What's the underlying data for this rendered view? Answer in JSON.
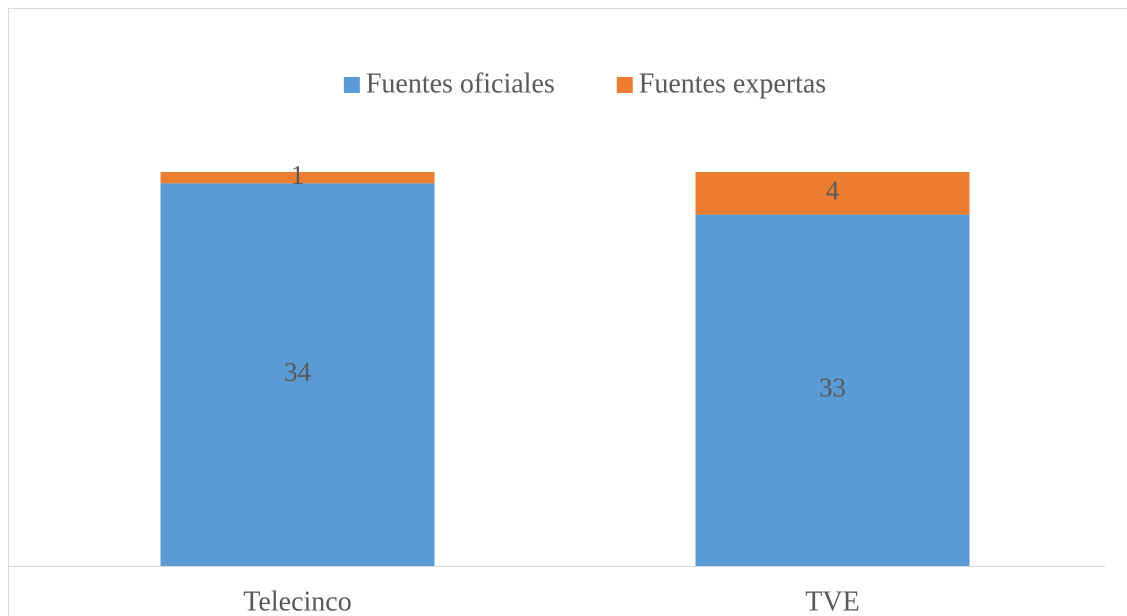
{
  "chart_data": {
    "type": "bar",
    "stacked": "percent",
    "categories": [
      "Telecinco",
      "TVE"
    ],
    "series": [
      {
        "name": "Fuentes oficiales",
        "color": "#5b9bd5",
        "values": [
          34,
          33
        ]
      },
      {
        "name": "Fuentes expertas",
        "color": "#ed7d31",
        "values": [
          1,
          4
        ]
      }
    ],
    "legend": "top"
  }
}
